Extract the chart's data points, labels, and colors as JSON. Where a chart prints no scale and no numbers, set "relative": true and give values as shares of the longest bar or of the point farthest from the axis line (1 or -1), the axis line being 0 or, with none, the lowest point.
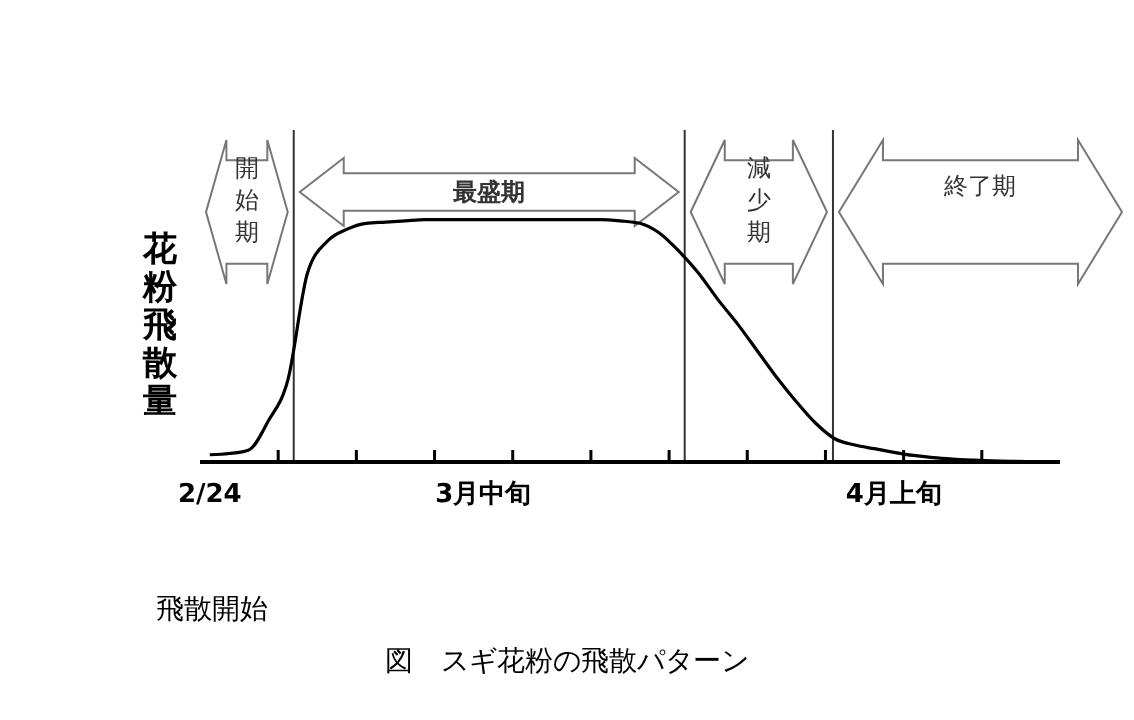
{
  "chart_data": {
    "type": "line",
    "title": "図　スギ花粉の飛散パターン",
    "ylabel": "花粉飛散量",
    "relative": true,
    "categories": [
      "2/24",
      null,
      null,
      null,
      null,
      null,
      null,
      null,
      null,
      null,
      null,
      null,
      null,
      null,
      "3月中旬",
      null,
      null,
      null,
      null,
      null,
      null,
      null,
      null,
      null,
      null,
      null,
      null,
      null,
      null,
      null,
      null,
      null,
      null,
      null,
      null,
      "4月上旬",
      null,
      null,
      null,
      null,
      null,
      null,
      null,
      null
    ],
    "series": [
      {
        "color": "#000000",
        "values": [
          0.03,
          0.035,
          0.05,
          0.17,
          0.34,
          0.78,
          0.91,
          0.96,
          0.985,
          0.99,
          0.995,
          1,
          1,
          1,
          1,
          1,
          1,
          1,
          1,
          1,
          1,
          0.995,
          0.985,
          0.945,
          0.87,
          0.78,
          0.67,
          0.57,
          0.46,
          0.35,
          0.25,
          0.16,
          0.095,
          0.07,
          0.055,
          0.04,
          0.027,
          0.018,
          0.012,
          0.008,
          0.005,
          0.003,
          0.001,
          0
        ]
      }
    ],
    "annotations": [
      "開始期",
      "最盛期",
      "減少期",
      "終了期",
      "飛散開始"
    ]
  }
}
